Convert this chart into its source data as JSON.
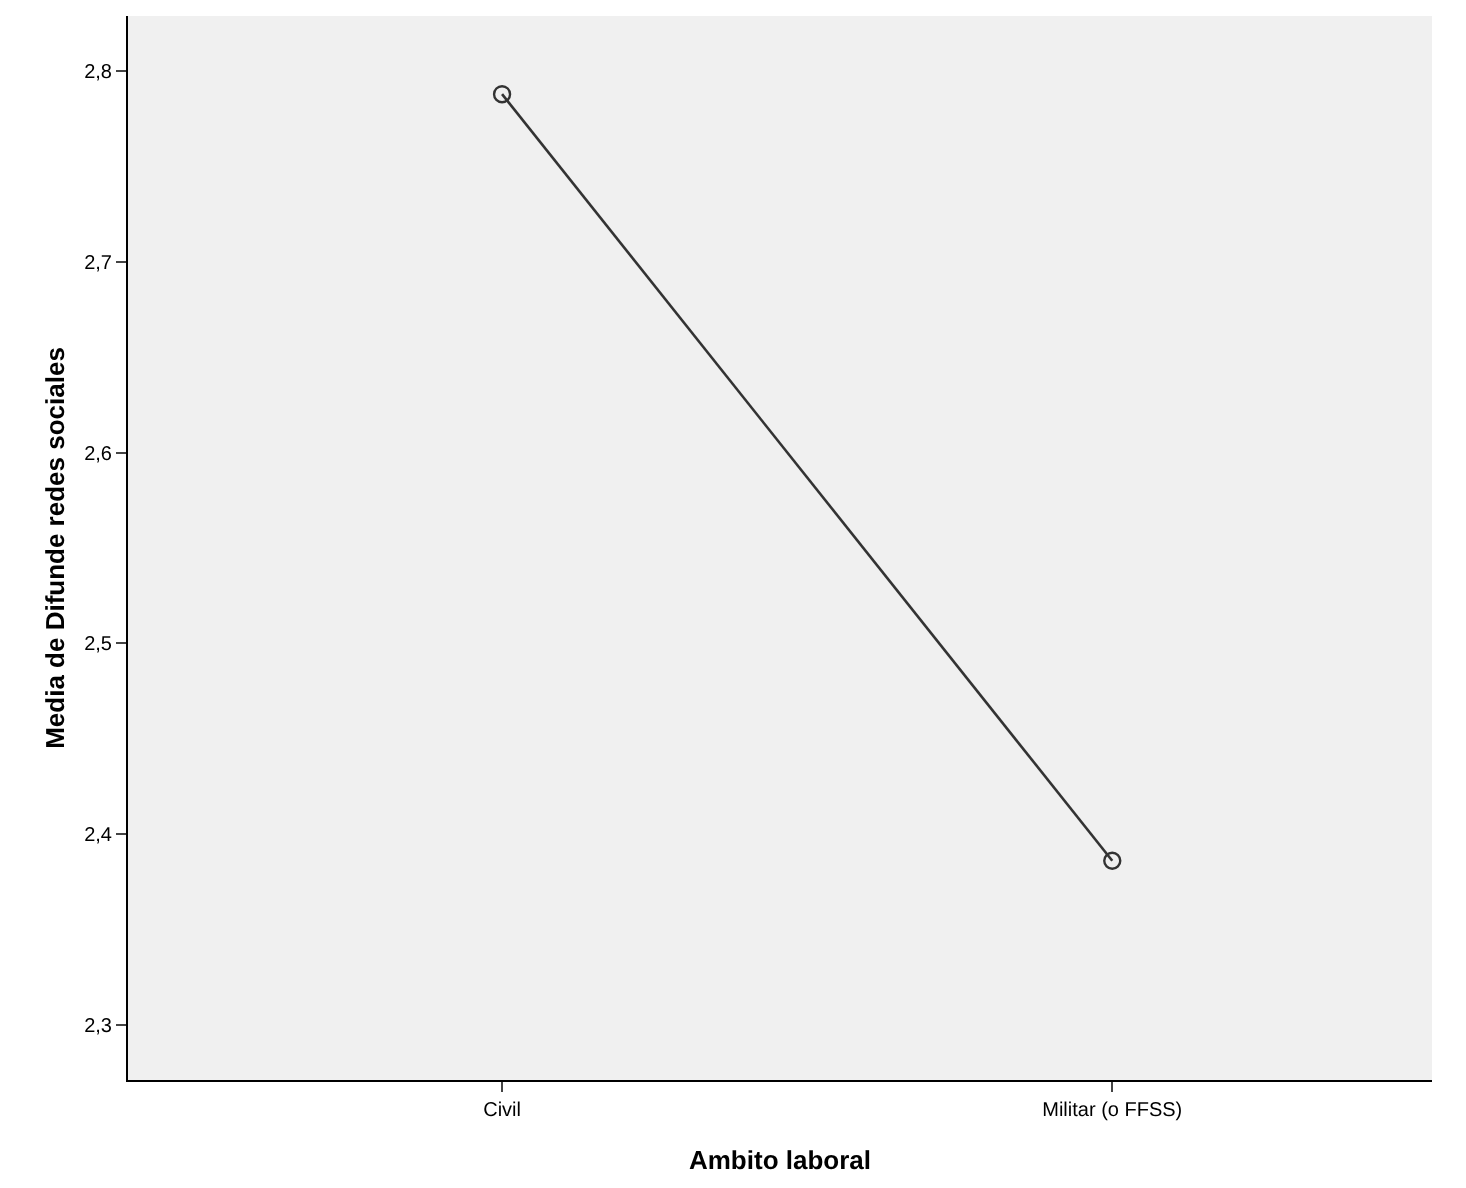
{
  "chart_data": {
    "type": "line",
    "xlabel": "Ambito laboral",
    "ylabel": "Media de Difunde redes sociales",
    "categories": [
      "Civil",
      "Militar (o FFSS)"
    ],
    "series": [
      {
        "color": "#333333",
        "values": [
          2.788,
          2.386
        ]
      }
    ],
    "ylim": [
      2.271,
      2.829
    ],
    "yticks": [
      {
        "value": 2.3,
        "label": "2,3"
      },
      {
        "value": 2.4,
        "label": "2,4"
      },
      {
        "value": 2.5,
        "label": "2,5"
      },
      {
        "value": 2.6,
        "label": "2,6"
      },
      {
        "value": 2.7,
        "label": "2,7"
      },
      {
        "value": 2.8,
        "label": "2,8"
      }
    ],
    "grid": false,
    "marker": "circle",
    "line_style": "solid"
  }
}
